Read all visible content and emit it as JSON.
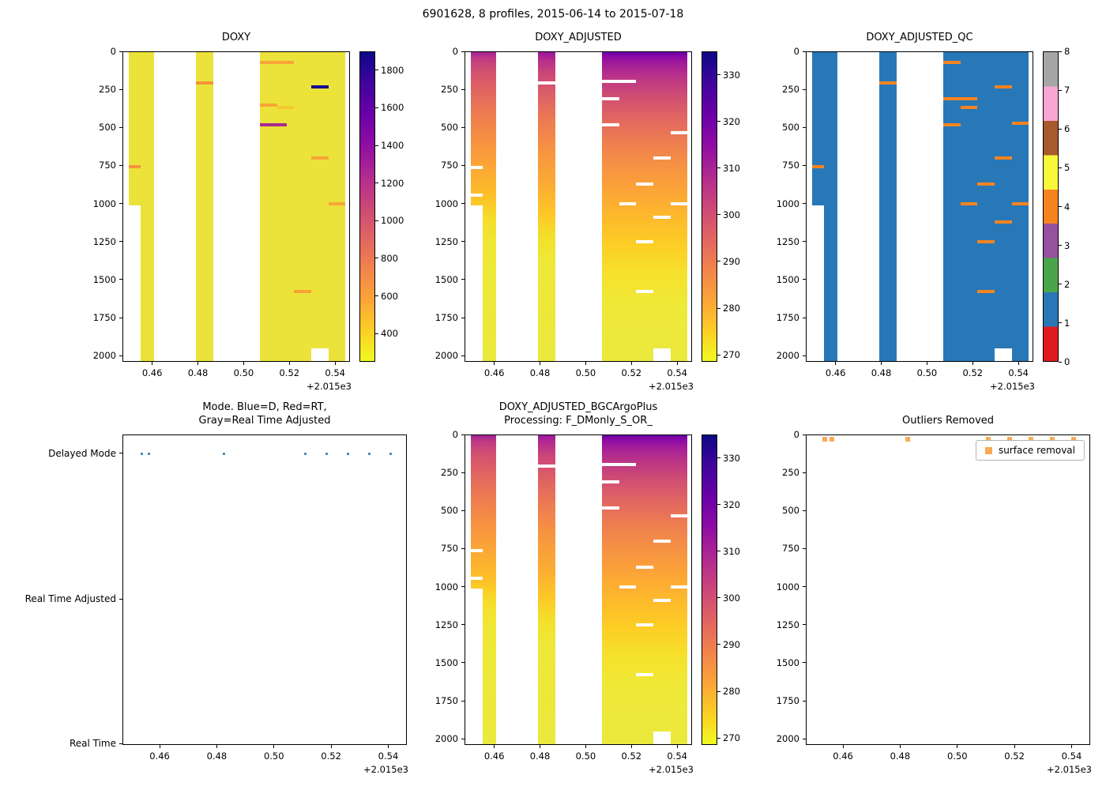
{
  "figure": {
    "suptitle": "6901628, 8 profiles, 2015-06-14 to 2015-07-18",
    "x_offset_label": "+2.015e3",
    "x_ticks": [
      0.46,
      0.48,
      0.5,
      0.52,
      0.54
    ],
    "depth_ticks": [
      0,
      250,
      500,
      750,
      1000,
      1250,
      1500,
      1750,
      2000
    ],
    "profile_times": [
      0.4535,
      0.456,
      0.4825,
      0.511,
      0.5185,
      0.526,
      0.5335,
      0.541
    ]
  },
  "chart_data": [
    {
      "type": "heatmap",
      "title": "DOXY",
      "title_lines": [
        "DOXY"
      ],
      "xlabel": "",
      "ylabel": "",
      "xlim": [
        0.447,
        0.5465
      ],
      "depth_lim": [
        0,
        2040
      ],
      "colorbar": {
        "vmin": 250,
        "vmax": 1900,
        "ticks": [
          400,
          600,
          800,
          1000,
          1200,
          1400,
          1600,
          1800
        ],
        "gradient": [
          "#0d0887",
          "#41049d",
          "#6a00a8",
          "#8f0da4",
          "#b12a90",
          "#cc4778",
          "#e16462",
          "#f1834c",
          "#fca338",
          "#fcce25",
          "#f0f921"
        ]
      },
      "bands": [
        {
          "x0": 0.4495,
          "x1": 0.4605,
          "stops": [
            [
              0,
              "#ebe339"
            ],
            [
              1,
              "#ebe339"
            ]
          ]
        },
        {
          "x0": 0.479,
          "x1": 0.4865,
          "stops": [
            [
              0,
              "#ebe339"
            ],
            [
              1,
              "#ebe339"
            ]
          ]
        },
        {
          "x0": 0.5073,
          "x1": 0.5447,
          "stops": [
            [
              0,
              "#ebe339"
            ],
            [
              1,
              "#ebe339"
            ]
          ]
        }
      ],
      "dashes": [
        {
          "x0": 0.4495,
          "x1": 0.45475,
          "depth": 755,
          "color": "#f6923b"
        },
        {
          "x0": 0.479,
          "x1": 0.4865,
          "depth": 205,
          "color": "#f6923b"
        },
        {
          "x0": 0.5073,
          "x1": 0.5223,
          "depth": 70,
          "color": "#f9a437"
        },
        {
          "x0": 0.5073,
          "x1": 0.5148,
          "depth": 350,
          "color": "#f9a437"
        },
        {
          "x0": 0.5148,
          "x1": 0.5223,
          "depth": 365,
          "color": "#f3ca2e"
        },
        {
          "x0": 0.5073,
          "x1": 0.519,
          "depth": 480,
          "color": "#a62a92"
        },
        {
          "x0": 0.5298,
          "x1": 0.5373,
          "depth": 230,
          "color": "#10068e"
        },
        {
          "x0": 0.5298,
          "x1": 0.5373,
          "depth": 700,
          "color": "#f9a437"
        },
        {
          "x0": 0.5373,
          "x1": 0.5447,
          "depth": 1000,
          "color": "#f9a437"
        },
        {
          "x0": 0.5223,
          "x1": 0.5298,
          "depth": 1580,
          "color": "#f9a437"
        }
      ],
      "gaps": [
        {
          "x0": 0.4495,
          "x1": 0.45475,
          "d0": 1010,
          "d1": 2040
        },
        {
          "x0": 0.5298,
          "x1": 0.5373,
          "d0": 1955,
          "d1": 2040
        }
      ]
    },
    {
      "type": "heatmap",
      "title": "DOXY_ADJUSTED",
      "title_lines": [
        "DOXY_ADJUSTED"
      ],
      "xlim": [
        0.447,
        0.5465
      ],
      "depth_lim": [
        0,
        2040
      ],
      "colorbar": {
        "vmin": 268.5,
        "vmax": 335,
        "ticks": [
          270,
          280,
          290,
          300,
          310,
          320,
          330
        ],
        "gradient": [
          "#0d0887",
          "#41049d",
          "#6a00a8",
          "#8f0da4",
          "#b12a90",
          "#cc4778",
          "#e16462",
          "#f1834c",
          "#fca338",
          "#fcce25",
          "#f0f921"
        ]
      },
      "bands": [
        {
          "x0": 0.4495,
          "x1": 0.4605,
          "stops": [
            [
              0,
              "#a32296"
            ],
            [
              0.02,
              "#bf3a84"
            ],
            [
              0.06,
              "#d25071"
            ],
            [
              0.11,
              "#de6065"
            ],
            [
              0.18,
              "#ea7656"
            ],
            [
              0.27,
              "#f58d44"
            ],
            [
              0.37,
              "#fba636"
            ],
            [
              0.47,
              "#fdc127"
            ],
            [
              0.54,
              "#f6dd2a"
            ],
            [
              0.62,
              "#efe735"
            ],
            [
              1,
              "#ebe93d"
            ]
          ]
        },
        {
          "x0": 0.479,
          "x1": 0.4865,
          "stops": [
            [
              0,
              "#9c179e"
            ],
            [
              0.025,
              "#b62d8c"
            ],
            [
              0.07,
              "#cc4778"
            ],
            [
              0.13,
              "#dc5d68"
            ],
            [
              0.21,
              "#eb7755"
            ],
            [
              0.31,
              "#f69241"
            ],
            [
              0.43,
              "#fbac33"
            ],
            [
              0.52,
              "#fdc627"
            ],
            [
              0.6,
              "#f3e02b"
            ],
            [
              0.68,
              "#eee838"
            ],
            [
              1,
              "#ebe93d"
            ]
          ]
        },
        {
          "x0": 0.5073,
          "x1": 0.5447,
          "stops": [
            [
              0,
              "#6a00a8"
            ],
            [
              0.012,
              "#8708a6"
            ],
            [
              0.035,
              "#a01b9b"
            ],
            [
              0.08,
              "#ba3388"
            ],
            [
              0.14,
              "#cf4c74"
            ],
            [
              0.21,
              "#e16562"
            ],
            [
              0.3,
              "#ef814e"
            ],
            [
              0.42,
              "#fa9e3b"
            ],
            [
              0.52,
              "#fdb62d"
            ],
            [
              0.62,
              "#fdcd25"
            ],
            [
              0.72,
              "#f5e22c"
            ],
            [
              0.82,
              "#efe938"
            ],
            [
              1,
              "#ebe93d"
            ]
          ]
        }
      ],
      "dashes": [
        {
          "x0": 0.4495,
          "x1": 0.45475,
          "depth": 760,
          "color": "#ffffff"
        },
        {
          "x0": 0.4495,
          "x1": 0.45475,
          "depth": 945,
          "color": "#ffffff"
        },
        {
          "x0": 0.479,
          "x1": 0.4865,
          "depth": 205,
          "color": "#ffffff"
        },
        {
          "x0": 0.5073,
          "x1": 0.5223,
          "depth": 195,
          "color": "#ffffff"
        },
        {
          "x0": 0.5073,
          "x1": 0.5148,
          "depth": 310,
          "color": "#ffffff"
        },
        {
          "x0": 0.5073,
          "x1": 0.5148,
          "depth": 480,
          "color": "#ffffff"
        },
        {
          "x0": 0.5373,
          "x1": 0.5447,
          "depth": 530,
          "color": "#ffffff"
        },
        {
          "x0": 0.5298,
          "x1": 0.5373,
          "depth": 700,
          "color": "#ffffff"
        },
        {
          "x0": 0.5223,
          "x1": 0.5298,
          "depth": 870,
          "color": "#ffffff"
        },
        {
          "x0": 0.5148,
          "x1": 0.5223,
          "depth": 1000,
          "color": "#ffffff"
        },
        {
          "x0": 0.5373,
          "x1": 0.5447,
          "depth": 1000,
          "color": "#ffffff"
        },
        {
          "x0": 0.5298,
          "x1": 0.5373,
          "depth": 1090,
          "color": "#ffffff"
        },
        {
          "x0": 0.5223,
          "x1": 0.5298,
          "depth": 1250,
          "color": "#ffffff"
        },
        {
          "x0": 0.5223,
          "x1": 0.5298,
          "depth": 1580,
          "color": "#ffffff"
        }
      ],
      "gaps": [
        {
          "x0": 0.4495,
          "x1": 0.45475,
          "d0": 1010,
          "d1": 2040
        },
        {
          "x0": 0.5298,
          "x1": 0.5373,
          "d0": 1955,
          "d1": 2040
        }
      ]
    },
    {
      "type": "heatmap",
      "title": "DOXY_ADJUSTED_QC",
      "title_lines": [
        "DOXY_ADJUSTED_QC"
      ],
      "xlim": [
        0.447,
        0.5465
      ],
      "depth_lim": [
        0,
        2040
      ],
      "colorbar": {
        "ticks": [
          0,
          1,
          2,
          3,
          4,
          5,
          6,
          7,
          8
        ],
        "segments": [
          "#e0191f",
          "#2878b8",
          "#4aa54a",
          "#96519f",
          "#f78320",
          "#f8f73b",
          "#a85a2b",
          "#f9a6d2",
          "#a6a6a6"
        ]
      },
      "qc_flag_colors": {
        "0": "#e0191f",
        "1": "#2878b8",
        "2": "#4aa54a",
        "3": "#96519f",
        "4": "#f78320",
        "5": "#f8f73b",
        "6": "#a85a2b",
        "7": "#f9a6d2",
        "8": "#a6a6a6"
      },
      "bands": [
        {
          "x0": 0.4495,
          "x1": 0.4605,
          "stops": [
            [
              0,
              "#2878b8"
            ],
            [
              1,
              "#2878b8"
            ]
          ]
        },
        {
          "x0": 0.479,
          "x1": 0.4865,
          "stops": [
            [
              0,
              "#2878b8"
            ],
            [
              1,
              "#2878b8"
            ]
          ]
        },
        {
          "x0": 0.5073,
          "x1": 0.5447,
          "stops": [
            [
              0,
              "#2878b8"
            ],
            [
              1,
              "#2878b8"
            ]
          ]
        }
      ],
      "dashes": [
        {
          "x0": 0.4495,
          "x1": 0.45475,
          "depth": 755,
          "color": "#f78320"
        },
        {
          "x0": 0.479,
          "x1": 0.4865,
          "depth": 205,
          "color": "#f78320"
        },
        {
          "x0": 0.5073,
          "x1": 0.5148,
          "depth": 70,
          "color": "#f78320"
        },
        {
          "x0": 0.5298,
          "x1": 0.5373,
          "depth": 230,
          "color": "#f78320"
        },
        {
          "x0": 0.5073,
          "x1": 0.5223,
          "depth": 310,
          "color": "#f78320"
        },
        {
          "x0": 0.5148,
          "x1": 0.5223,
          "depth": 365,
          "color": "#f78320"
        },
        {
          "x0": 0.5073,
          "x1": 0.5148,
          "depth": 480,
          "color": "#f78320"
        },
        {
          "x0": 0.5373,
          "x1": 0.5447,
          "depth": 470,
          "color": "#f78320"
        },
        {
          "x0": 0.5298,
          "x1": 0.5373,
          "depth": 700,
          "color": "#f78320"
        },
        {
          "x0": 0.5223,
          "x1": 0.5298,
          "depth": 870,
          "color": "#f78320"
        },
        {
          "x0": 0.5148,
          "x1": 0.5223,
          "depth": 1000,
          "color": "#f78320"
        },
        {
          "x0": 0.5373,
          "x1": 0.5447,
          "depth": 1000,
          "color": "#f78320"
        },
        {
          "x0": 0.5298,
          "x1": 0.5373,
          "depth": 1120,
          "color": "#f78320"
        },
        {
          "x0": 0.5223,
          "x1": 0.5298,
          "depth": 1250,
          "color": "#f78320"
        },
        {
          "x0": 0.5223,
          "x1": 0.5298,
          "depth": 1580,
          "color": "#f78320"
        }
      ],
      "gaps": [
        {
          "x0": 0.4495,
          "x1": 0.45475,
          "d0": 1010,
          "d1": 2040
        },
        {
          "x0": 0.5298,
          "x1": 0.5373,
          "d0": 1955,
          "d1": 2040
        }
      ]
    },
    {
      "type": "scatter",
      "title": "Mode. Blue=D, Red=RT,\nGray=Real Time Adjusted",
      "title_lines": [
        "Mode. Blue=D, Red=RT,",
        "Gray=Real Time Adjusted"
      ],
      "xlim": [
        0.447,
        0.5465
      ],
      "categories": [
        {
          "label": "Delayed Mode",
          "f": 0.06
        },
        {
          "label": "Real Time Adjusted",
          "f": 0.53
        },
        {
          "label": "Real Time",
          "f": 0.995
        }
      ],
      "points": {
        "x": [
          0.4535,
          0.456,
          0.4825,
          0.511,
          0.5185,
          0.526,
          0.5335,
          0.541
        ],
        "category": "Delayed Mode",
        "color": "#1f77b4",
        "marker": "dot"
      }
    },
    {
      "type": "heatmap",
      "title": "DOXY_ADJUSTED_BGCArgoPlus\nProcessing: F_DMonly_S_OR_",
      "title_lines": [
        "DOXY_ADJUSTED_BGCArgoPlus",
        "Processing: F_DMonly_S_OR_"
      ],
      "xlim": [
        0.447,
        0.5465
      ],
      "depth_lim": [
        0,
        2040
      ],
      "colorbar": {
        "vmin": 268.5,
        "vmax": 335,
        "ticks": [
          270,
          280,
          290,
          300,
          310,
          320,
          330
        ],
        "gradient": [
          "#0d0887",
          "#41049d",
          "#6a00a8",
          "#8f0da4",
          "#b12a90",
          "#cc4778",
          "#e16462",
          "#f1834c",
          "#fca338",
          "#fcce25",
          "#f0f921"
        ]
      },
      "bands": [
        {
          "x0": 0.4495,
          "x1": 0.4605,
          "stops": [
            [
              0,
              "#a32296"
            ],
            [
              0.02,
              "#bf3a84"
            ],
            [
              0.06,
              "#d25071"
            ],
            [
              0.11,
              "#de6065"
            ],
            [
              0.18,
              "#ea7656"
            ],
            [
              0.27,
              "#f58d44"
            ],
            [
              0.37,
              "#fba636"
            ],
            [
              0.47,
              "#fdc127"
            ],
            [
              0.54,
              "#f6dd2a"
            ],
            [
              0.62,
              "#efe735"
            ],
            [
              1,
              "#ebe93d"
            ]
          ]
        },
        {
          "x0": 0.479,
          "x1": 0.4865,
          "stops": [
            [
              0,
              "#9c179e"
            ],
            [
              0.025,
              "#b62d8c"
            ],
            [
              0.07,
              "#cc4778"
            ],
            [
              0.13,
              "#dc5d68"
            ],
            [
              0.21,
              "#eb7755"
            ],
            [
              0.31,
              "#f69241"
            ],
            [
              0.43,
              "#fbac33"
            ],
            [
              0.52,
              "#fdc627"
            ],
            [
              0.6,
              "#f3e02b"
            ],
            [
              0.68,
              "#eee838"
            ],
            [
              1,
              "#ebe93d"
            ]
          ]
        },
        {
          "x0": 0.5073,
          "x1": 0.5447,
          "stops": [
            [
              0,
              "#6a00a8"
            ],
            [
              0.012,
              "#8708a6"
            ],
            [
              0.035,
              "#a01b9b"
            ],
            [
              0.08,
              "#ba3388"
            ],
            [
              0.14,
              "#cf4c74"
            ],
            [
              0.21,
              "#e16562"
            ],
            [
              0.3,
              "#ef814e"
            ],
            [
              0.42,
              "#fa9e3b"
            ],
            [
              0.52,
              "#fdb62d"
            ],
            [
              0.62,
              "#fdcd25"
            ],
            [
              0.72,
              "#f5e22c"
            ],
            [
              0.82,
              "#efe938"
            ],
            [
              1,
              "#ebe93d"
            ]
          ]
        }
      ],
      "dashes": [
        {
          "x0": 0.4495,
          "x1": 0.45475,
          "depth": 760,
          "color": "#ffffff"
        },
        {
          "x0": 0.4495,
          "x1": 0.45475,
          "depth": 945,
          "color": "#ffffff"
        },
        {
          "x0": 0.479,
          "x1": 0.4865,
          "depth": 205,
          "color": "#ffffff"
        },
        {
          "x0": 0.5073,
          "x1": 0.5223,
          "depth": 195,
          "color": "#ffffff"
        },
        {
          "x0": 0.5073,
          "x1": 0.5148,
          "depth": 310,
          "color": "#ffffff"
        },
        {
          "x0": 0.5073,
          "x1": 0.5148,
          "depth": 480,
          "color": "#ffffff"
        },
        {
          "x0": 0.5373,
          "x1": 0.5447,
          "depth": 530,
          "color": "#ffffff"
        },
        {
          "x0": 0.5298,
          "x1": 0.5373,
          "depth": 700,
          "color": "#ffffff"
        },
        {
          "x0": 0.5223,
          "x1": 0.5298,
          "depth": 870,
          "color": "#ffffff"
        },
        {
          "x0": 0.5148,
          "x1": 0.5223,
          "depth": 1000,
          "color": "#ffffff"
        },
        {
          "x0": 0.5373,
          "x1": 0.5447,
          "depth": 1000,
          "color": "#ffffff"
        },
        {
          "x0": 0.5298,
          "x1": 0.5373,
          "depth": 1090,
          "color": "#ffffff"
        },
        {
          "x0": 0.5223,
          "x1": 0.5298,
          "depth": 1250,
          "color": "#ffffff"
        },
        {
          "x0": 0.5223,
          "x1": 0.5298,
          "depth": 1580,
          "color": "#ffffff"
        }
      ],
      "gaps": [
        {
          "x0": 0.4495,
          "x1": 0.45475,
          "d0": 1010,
          "d1": 2040
        },
        {
          "x0": 0.5298,
          "x1": 0.5373,
          "d0": 1955,
          "d1": 2040
        }
      ]
    },
    {
      "type": "scatter",
      "title": "Outliers Removed",
      "title_lines": [
        "Outliers Removed"
      ],
      "xlim": [
        0.447,
        0.5465
      ],
      "depth_lim": [
        0,
        2040
      ],
      "points": {
        "x": [
          0.4535,
          0.456,
          0.4825,
          0.511,
          0.5185,
          0.526,
          0.5335,
          0.541
        ],
        "depth": 25,
        "color": "#f9a958",
        "marker": "square"
      },
      "legend": {
        "label": "surface removal",
        "marker_color": "#f9a958"
      }
    }
  ]
}
